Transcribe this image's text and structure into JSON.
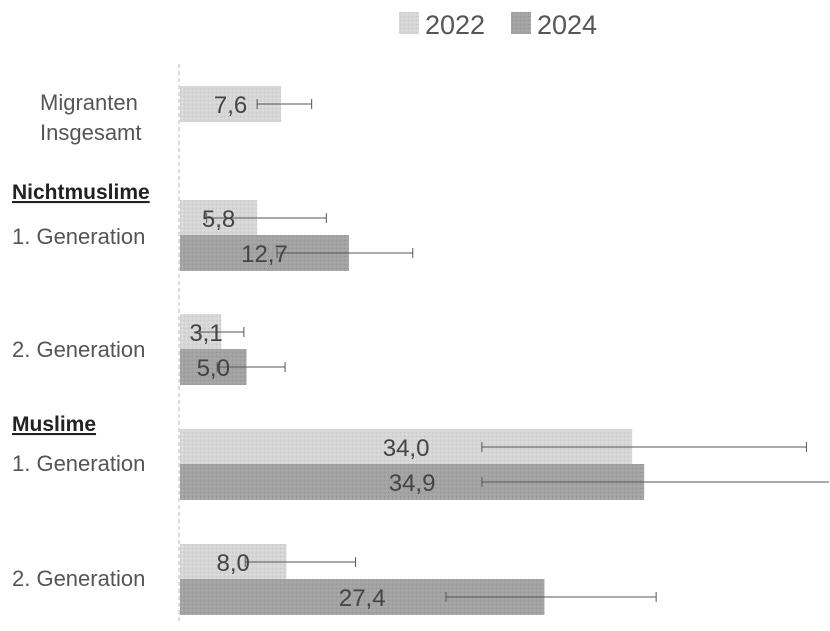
{
  "chart_data": {
    "type": "bar",
    "orientation": "horizontal",
    "title": "",
    "xlabel": "",
    "ylabel": "",
    "xlim": [
      0,
      48
    ],
    "legend": {
      "placement": "top-center",
      "entries": [
        "2022",
        "2024"
      ]
    },
    "colors": {
      "2022": "#d6d6d6",
      "2024": "#a3a3a3",
      "error_bar": "#555555",
      "axis": "#bbbbbb"
    },
    "groups": [
      {
        "label": "",
        "categories": [
          {
            "label": "Migranten Insgesamt",
            "label_lines": [
              "Migranten",
              "Insgesamt"
            ],
            "bars": [
              {
                "series": "2022",
                "value": 7.6,
                "label": "7,6",
                "error": [
                  5.8,
                  9.9
                ]
              }
            ]
          }
        ]
      },
      {
        "label": "Nichtmuslime",
        "categories": [
          {
            "label": "1. Generation",
            "label_lines": [
              "1. Generation"
            ],
            "bars": [
              {
                "series": "2022",
                "value": 5.8,
                "label": "5,8",
                "error": [
                  2.0,
                  11.0
                ]
              },
              {
                "series": "2024",
                "value": 12.7,
                "label": "12,7",
                "error": [
                  7.3,
                  17.5
                ]
              }
            ]
          },
          {
            "label": "2. Generation",
            "label_lines": [
              "2. Generation"
            ],
            "bars": [
              {
                "series": "2022",
                "value": 3.1,
                "label": "3,1",
                "error": [
                  1.5,
                  4.8
                ]
              },
              {
                "series": "2024",
                "value": 5.0,
                "label": "5,0",
                "error": [
                  2.8,
                  7.9
                ]
              }
            ]
          }
        ]
      },
      {
        "label": "Muslime",
        "categories": [
          {
            "label": "1. Generation",
            "label_lines": [
              "1. Generation"
            ],
            "bars": [
              {
                "series": "2022",
                "value": 34.0,
                "label": "34,0",
                "error": [
                  22.7,
                  47.1
                ]
              },
              {
                "series": "2024",
                "value": 34.9,
                "label": "34,9",
                "error": [
                  22.7,
                  49.0
                ]
              }
            ]
          },
          {
            "label": "2. Generation",
            "label_lines": [
              "2. Generation"
            ],
            "bars": [
              {
                "series": "2022",
                "value": 8.0,
                "label": "8,0",
                "error": [
                  4.9,
                  13.2
                ]
              },
              {
                "series": "2024",
                "value": 27.4,
                "label": "27,4",
                "error": [
                  20.0,
                  35.8
                ]
              }
            ]
          }
        ]
      }
    ]
  }
}
